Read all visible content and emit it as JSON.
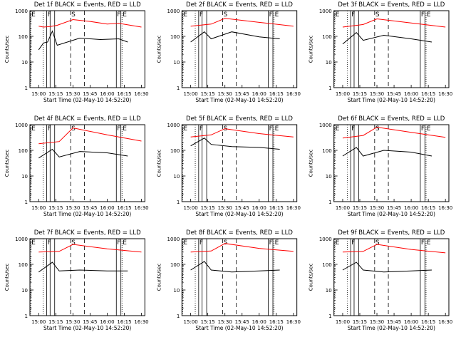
{
  "chart_data": [
    {
      "type": "line",
      "title": "Det 1f BLACK = Events, RED = LLD",
      "detector": "1f",
      "xlabel": "Start Time (02-May-10 14:52:20)",
      "ylabel": "Counts/sec",
      "x_tick_labels": [
        "15:00",
        "15:15",
        "15:30",
        "15:45",
        "16:00",
        "16:15",
        "16:30"
      ],
      "y_tick_labels": [
        "1",
        "10",
        "100",
        "1000"
      ],
      "yscale": "log",
      "ylim": [
        1,
        1000
      ],
      "xlim": [
        "14:52:20",
        "16:33:00"
      ],
      "markers": [
        {
          "label": "E",
          "time": "14:53"
        },
        {
          "label": "F",
          "time": "15:07"
        },
        {
          "label": "S",
          "time": "15:28"
        },
        {
          "label": "F",
          "time": "16:08"
        },
        {
          "label": "E",
          "time": "16:13"
        }
      ],
      "series": [
        {
          "name": "LLD",
          "color": "#ff0000",
          "values": [
            [
              15.0,
              250
            ],
            [
              15.07,
              230
            ],
            [
              15.17,
              240
            ],
            [
              15.27,
              270
            ],
            [
              15.5,
              450
            ],
            [
              15.75,
              380
            ],
            [
              16.0,
              300
            ],
            [
              16.17,
              320
            ],
            [
              16.5,
              230
            ]
          ]
        },
        {
          "name": "Events",
          "color": "#000000",
          "values": [
            [
              15.0,
              30
            ],
            [
              15.07,
              55
            ],
            [
              15.13,
              60
            ],
            [
              15.2,
              160
            ],
            [
              15.27,
              45
            ],
            [
              15.6,
              85
            ],
            [
              15.9,
              75
            ],
            [
              16.17,
              80
            ],
            [
              16.3,
              60
            ]
          ]
        }
      ]
    },
    {
      "type": "line",
      "title": "Det 2f BLACK = Events, RED = LLD",
      "detector": "2f",
      "xlabel": "Start Time (02-May-10 14:52:20)",
      "ylabel": "Counts/sec",
      "x_tick_labels": [
        "15:00",
        "15:15",
        "15:30",
        "15:45",
        "16:00",
        "16:15",
        "16:30"
      ],
      "y_tick_labels": [
        "1",
        "10",
        "100",
        "1000"
      ],
      "yscale": "log",
      "ylim": [
        1,
        1000
      ],
      "markers": [
        {
          "label": "E"
        },
        {
          "label": "F"
        },
        {
          "label": "S"
        },
        {
          "label": "F"
        },
        {
          "label": "E"
        }
      ],
      "series": [
        {
          "name": "LLD",
          "color": "#ff0000",
          "values": [
            [
              15.0,
              250
            ],
            [
              15.3,
              300
            ],
            [
              15.5,
              500
            ],
            [
              16.0,
              350
            ],
            [
              16.5,
              250
            ]
          ]
        },
        {
          "name": "Events",
          "color": "#000000",
          "values": [
            [
              15.0,
              60
            ],
            [
              15.2,
              150
            ],
            [
              15.3,
              80
            ],
            [
              15.6,
              150
            ],
            [
              16.0,
              95
            ],
            [
              16.3,
              80
            ]
          ]
        }
      ]
    },
    {
      "type": "line",
      "title": "Det 3f BLACK = Events, RED = LLD",
      "detector": "3f",
      "xlabel": "Start Time (02-May-10 14:52:20)",
      "ylabel": "Counts/sec",
      "x_tick_labels": [
        "15:00",
        "15:15",
        "15:30",
        "15:45",
        "16:00",
        "16:15",
        "16:30"
      ],
      "y_tick_labels": [
        "1",
        "10",
        "100",
        "1000"
      ],
      "yscale": "log",
      "ylim": [
        1,
        1000
      ],
      "markers": [
        {
          "label": "E"
        },
        {
          "label": "F"
        },
        {
          "label": "S"
        },
        {
          "label": "F"
        },
        {
          "label": "E"
        }
      ],
      "series": [
        {
          "name": "LLD",
          "color": "#ff0000",
          "values": [
            [
              15.0,
              230
            ],
            [
              15.3,
              290
            ],
            [
              15.5,
              480
            ],
            [
              16.0,
              330
            ],
            [
              16.5,
              230
            ]
          ]
        },
        {
          "name": "Events",
          "color": "#000000",
          "values": [
            [
              15.0,
              50
            ],
            [
              15.2,
              140
            ],
            [
              15.3,
              70
            ],
            [
              15.6,
              110
            ],
            [
              16.0,
              80
            ],
            [
              16.3,
              60
            ]
          ]
        }
      ]
    },
    {
      "type": "line",
      "title": "Det 4f BLACK = Events, RED = LLD",
      "detector": "4f",
      "xlabel": "Start Time (02-May-10 14:52:20)",
      "ylabel": "Counts/sec",
      "x_tick_labels": [
        "15:00",
        "15:15",
        "15:30",
        "15:45",
        "16:00",
        "16:15",
        "16:30"
      ],
      "y_tick_labels": [
        "1",
        "10",
        "100",
        "1000"
      ],
      "yscale": "log",
      "ylim": [
        1,
        1000
      ],
      "markers": [
        {
          "label": "E"
        },
        {
          "label": "F"
        },
        {
          "label": "S"
        },
        {
          "label": "F"
        },
        {
          "label": "E"
        }
      ],
      "series": [
        {
          "name": "LLD",
          "color": "#ff0000",
          "values": [
            [
              15.0,
              180
            ],
            [
              15.3,
              220
            ],
            [
              15.5,
              750
            ],
            [
              16.0,
              400
            ],
            [
              16.5,
              230
            ]
          ]
        },
        {
          "name": "Events",
          "color": "#000000",
          "values": [
            [
              15.0,
              50
            ],
            [
              15.2,
              110
            ],
            [
              15.3,
              55
            ],
            [
              15.6,
              90
            ],
            [
              16.0,
              80
            ],
            [
              16.3,
              60
            ]
          ]
        }
      ]
    },
    {
      "type": "line",
      "title": "Det 5f BLACK = Events, RED = LLD",
      "detector": "5f",
      "xlabel": "Start Time (02-May-10 14:52:20)",
      "ylabel": "Counts/sec",
      "x_tick_labels": [
        "15:00",
        "15:15",
        "15:30",
        "15:45",
        "16:00",
        "16:15",
        "16:30"
      ],
      "y_tick_labels": [
        "1",
        "10",
        "100",
        "1000"
      ],
      "yscale": "log",
      "ylim": [
        1,
        1000
      ],
      "markers": [
        {
          "label": "E"
        },
        {
          "label": "F"
        },
        {
          "label": "S"
        },
        {
          "label": "F"
        },
        {
          "label": "E"
        }
      ],
      "series": [
        {
          "name": "LLD",
          "color": "#ff0000",
          "values": [
            [
              15.0,
              330
            ],
            [
              15.3,
              400
            ],
            [
              15.5,
              700
            ],
            [
              16.0,
              450
            ],
            [
              16.5,
              330
            ]
          ]
        },
        {
          "name": "Events",
          "color": "#000000",
          "values": [
            [
              15.0,
              150
            ],
            [
              15.2,
              300
            ],
            [
              15.3,
              170
            ],
            [
              15.6,
              140
            ],
            [
              16.0,
              130
            ],
            [
              16.3,
              110
            ]
          ]
        }
      ]
    },
    {
      "type": "line",
      "title": "Det 6f BLACK = Events, RED = LLD",
      "detector": "6f",
      "xlabel": "Start Time (02-May-10 14:52:20)",
      "ylabel": "Counts/sec",
      "x_tick_labels": [
        "15:00",
        "15:15",
        "15:30",
        "15:45",
        "16:00",
        "16:15",
        "16:30"
      ],
      "y_tick_labels": [
        "1",
        "10",
        "100",
        "1000"
      ],
      "yscale": "log",
      "ylim": [
        1,
        1000
      ],
      "markers": [
        {
          "label": "E"
        },
        {
          "label": "F"
        },
        {
          "label": "S"
        },
        {
          "label": "F"
        },
        {
          "label": "E"
        }
      ],
      "series": [
        {
          "name": "LLD",
          "color": "#ff0000",
          "values": [
            [
              15.0,
              300
            ],
            [
              15.3,
              380
            ],
            [
              15.5,
              800
            ],
            [
              16.0,
              500
            ],
            [
              16.5,
              320
            ]
          ]
        },
        {
          "name": "Events",
          "color": "#000000",
          "values": [
            [
              15.0,
              60
            ],
            [
              15.2,
              130
            ],
            [
              15.3,
              60
            ],
            [
              15.6,
              100
            ],
            [
              16.0,
              85
            ],
            [
              16.3,
              60
            ]
          ]
        }
      ]
    },
    {
      "type": "line",
      "title": "Det 7f BLACK = Events, RED = LLD",
      "detector": "7f",
      "xlabel": "Start Time (02-May-10 14:52:20)",
      "ylabel": "Counts/sec",
      "x_tick_labels": [
        "15:00",
        "15:15",
        "15:30",
        "15:45",
        "16:00",
        "16:15",
        "16:30"
      ],
      "y_tick_labels": [
        "1",
        "10",
        "100",
        "1000"
      ],
      "yscale": "log",
      "ylim": [
        1,
        1000
      ],
      "markers": [
        {
          "label": "E"
        },
        {
          "label": "F"
        },
        {
          "label": "S"
        },
        {
          "label": "F"
        },
        {
          "label": "E"
        }
      ],
      "series": [
        {
          "name": "LLD",
          "color": "#ff0000",
          "values": [
            [
              15.0,
              300
            ],
            [
              15.3,
              320
            ],
            [
              15.5,
              600
            ],
            [
              16.0,
              400
            ],
            [
              16.5,
              300
            ]
          ]
        },
        {
          "name": "Events",
          "color": "#000000",
          "values": [
            [
              15.0,
              50
            ],
            [
              15.2,
              120
            ],
            [
              15.3,
              55
            ],
            [
              15.6,
              60
            ],
            [
              16.0,
              55
            ],
            [
              16.3,
              55
            ]
          ]
        }
      ]
    },
    {
      "type": "line",
      "title": "Det 8f BLACK = Events, RED = LLD",
      "detector": "8f",
      "xlabel": "Start Time (02-May-10 14:52:20)",
      "ylabel": "Counts/sec",
      "x_tick_labels": [
        "15:00",
        "15:15",
        "15:30",
        "15:45",
        "16:00",
        "16:15",
        "16:30"
      ],
      "y_tick_labels": [
        "1",
        "10",
        "100",
        "1000"
      ],
      "yscale": "log",
      "ylim": [
        1,
        1000
      ],
      "markers": [
        {
          "label": "E"
        },
        {
          "label": "F"
        },
        {
          "label": "S"
        },
        {
          "label": "F"
        },
        {
          "label": "E"
        }
      ],
      "series": [
        {
          "name": "LLD",
          "color": "#ff0000",
          "values": [
            [
              15.0,
              300
            ],
            [
              15.3,
              330
            ],
            [
              15.5,
              650
            ],
            [
              16.0,
              420
            ],
            [
              16.5,
              320
            ]
          ]
        },
        {
          "name": "Events",
          "color": "#000000",
          "values": [
            [
              15.0,
              60
            ],
            [
              15.2,
              130
            ],
            [
              15.3,
              60
            ],
            [
              15.6,
              50
            ],
            [
              16.0,
              55
            ],
            [
              16.3,
              60
            ]
          ]
        }
      ]
    },
    {
      "type": "line",
      "title": "Det 9f BLACK = Events, RED = LLD",
      "detector": "9f",
      "xlabel": "Start Time (02-May-10 14:52:20)",
      "ylabel": "Counts/sec",
      "x_tick_labels": [
        "15:00",
        "15:15",
        "15:30",
        "15:45",
        "16:00",
        "16:15",
        "16:30"
      ],
      "y_tick_labels": [
        "1",
        "10",
        "100",
        "1000"
      ],
      "yscale": "log",
      "ylim": [
        1,
        1000
      ],
      "markers": [
        {
          "label": "E"
        },
        {
          "label": "F"
        },
        {
          "label": "S"
        },
        {
          "label": "F"
        },
        {
          "label": "E"
        }
      ],
      "series": [
        {
          "name": "LLD",
          "color": "#ff0000",
          "values": [
            [
              15.0,
              300
            ],
            [
              15.3,
              320
            ],
            [
              15.5,
              600
            ],
            [
              16.0,
              380
            ],
            [
              16.5,
              280
            ]
          ]
        },
        {
          "name": "Events",
          "color": "#000000",
          "values": [
            [
              15.0,
              60
            ],
            [
              15.2,
              120
            ],
            [
              15.3,
              60
            ],
            [
              15.6,
              50
            ],
            [
              16.0,
              55
            ],
            [
              16.3,
              60
            ]
          ]
        }
      ]
    }
  ]
}
